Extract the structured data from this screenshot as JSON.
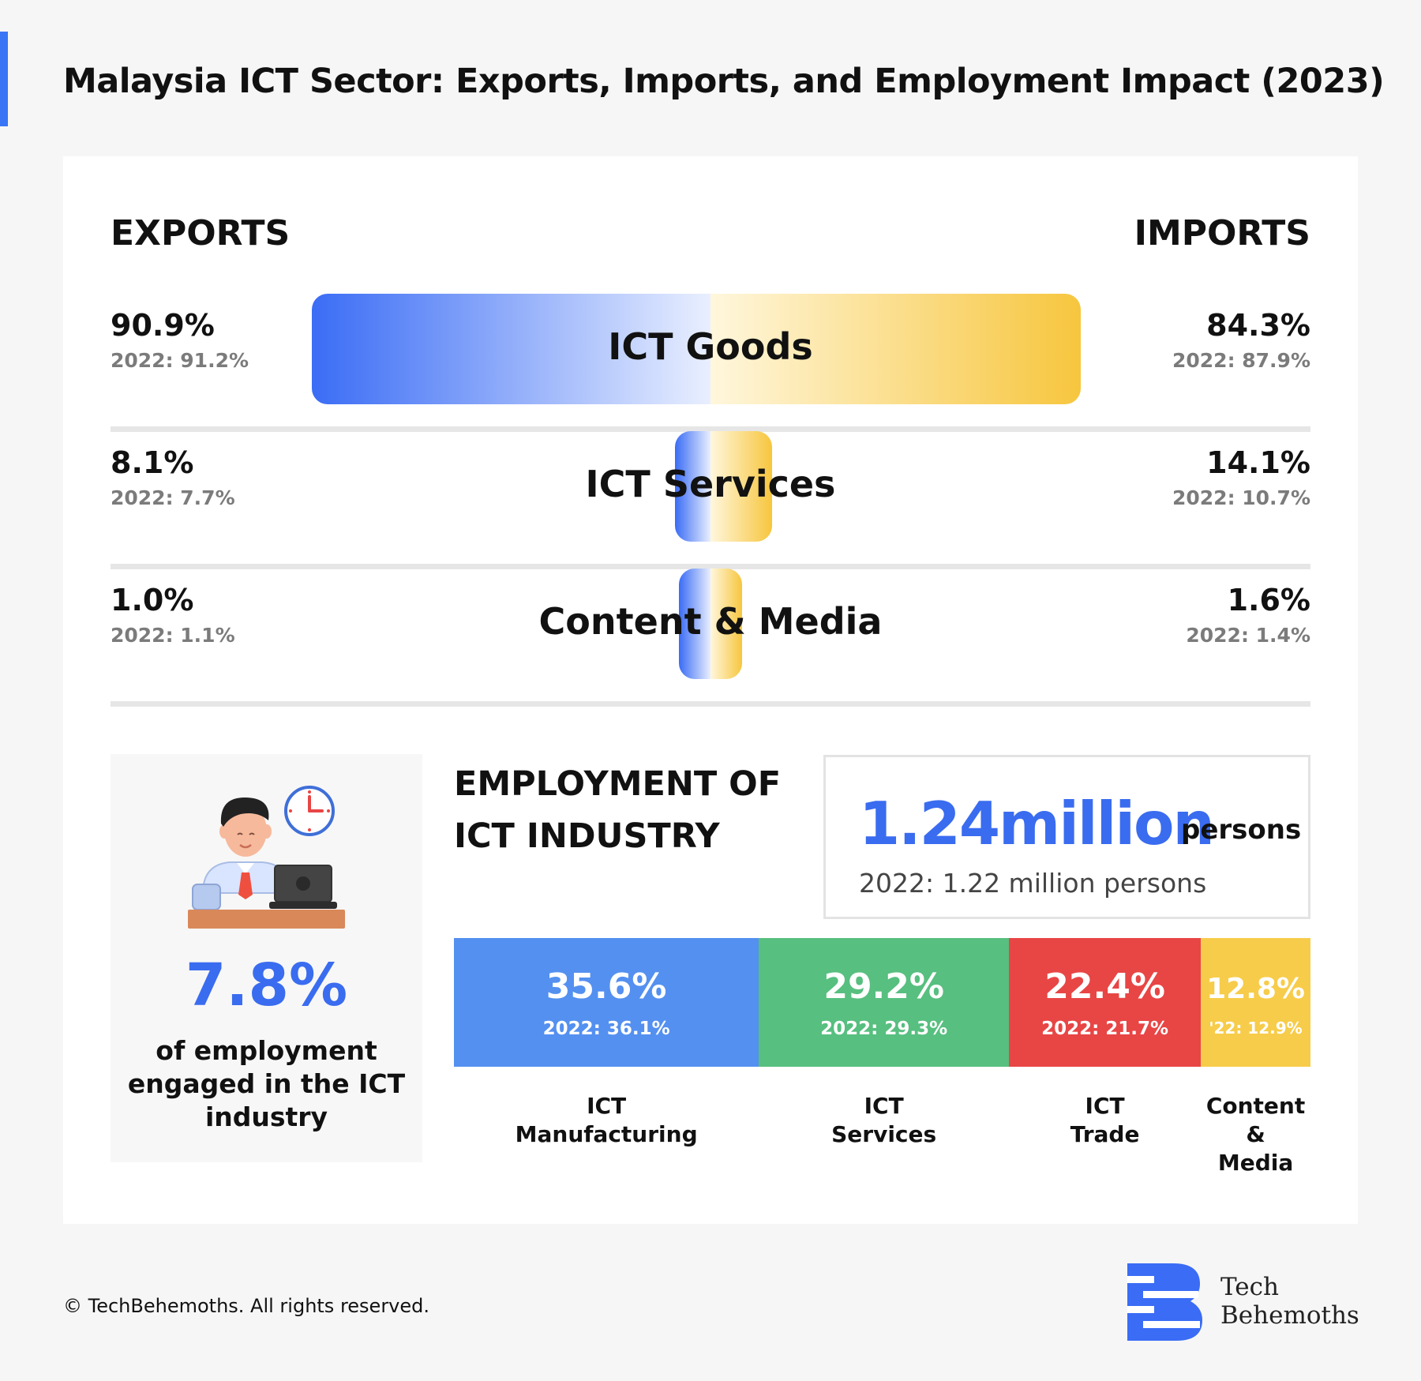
{
  "title": "Malaysia ICT Sector: Exports, Imports, and Employment Impact (2023)",
  "colors": {
    "exports": "#3a6cf5",
    "imports": "#f7c63e",
    "ict_manufacturing": "#5490f0",
    "ict_services": "#57bf7f",
    "ict_trade": "#e84545",
    "content_media": "#f7cc4a"
  },
  "trade": {
    "exports_label": "EXPORTS",
    "imports_label": "IMPORTS",
    "rows": [
      {
        "label": "ICT Goods",
        "exports": "90.9%",
        "exports_prev": "2022: 91.2%",
        "imports": "84.3%",
        "imports_prev": "2022: 87.9%"
      },
      {
        "label": "ICT Services",
        "exports": "8.1%",
        "exports_prev": "2022: 7.7%",
        "imports": "14.1%",
        "imports_prev": "2022: 10.7%"
      },
      {
        "label": "Content & Media",
        "exports": "1.0%",
        "exports_prev": "2022: 1.1%",
        "imports": "1.6%",
        "imports_prev": "2022: 1.4%"
      }
    ]
  },
  "employment": {
    "share_value": "7.8%",
    "share_desc": "of employment engaged in the ICT industry",
    "title_line1": "EMPLOYMENT OF",
    "title_line2": "ICT INDUSTRY",
    "total_value": "1.24million",
    "total_unit": "persons",
    "total_prev": "2022: 1.22 million persons",
    "segments": [
      {
        "label_line1": "ICT",
        "label_line2": "Manufacturing",
        "value": "35.6%",
        "prev": "2022: 36.1%"
      },
      {
        "label_line1": "ICT",
        "label_line2": "Services",
        "value": "29.2%",
        "prev": "2022: 29.3%"
      },
      {
        "label_line1": "ICT",
        "label_line2": "Trade",
        "value": "22.4%",
        "prev": "2022: 21.7%"
      },
      {
        "label_line1": "Content &",
        "label_line2": "Media",
        "value": "12.8%",
        "prev": "'22: 12.9%"
      }
    ]
  },
  "chart_data": [
    {
      "type": "bar",
      "title": "",
      "categories": [
        "ICT Goods",
        "ICT Services",
        "Content & Media"
      ],
      "series": [
        {
          "name": "EXPORTS",
          "values": [
            90.9,
            8.1,
            1.0
          ],
          "values_2022": [
            91.2,
            7.7,
            1.1
          ]
        },
        {
          "name": "IMPORTS",
          "values": [
            84.3,
            14.1,
            1.6
          ],
          "values_2022": [
            87.9,
            10.7,
            1.4
          ]
        }
      ]
    },
    {
      "type": "bar",
      "title": "EMPLOYMENT OF ICT INDUSTRY",
      "categories": [
        "ICT Manufacturing",
        "ICT Services",
        "ICT Trade",
        "Content & Media"
      ],
      "values": [
        35.6,
        29.2,
        22.4,
        12.8
      ],
      "values_2022": [
        36.1,
        29.3,
        21.7,
        12.9
      ]
    }
  ],
  "footer": {
    "copyright": "© TechBehemoths. All rights reserved.",
    "brand_line1": "Tech",
    "brand_line2": "Behemoths"
  }
}
